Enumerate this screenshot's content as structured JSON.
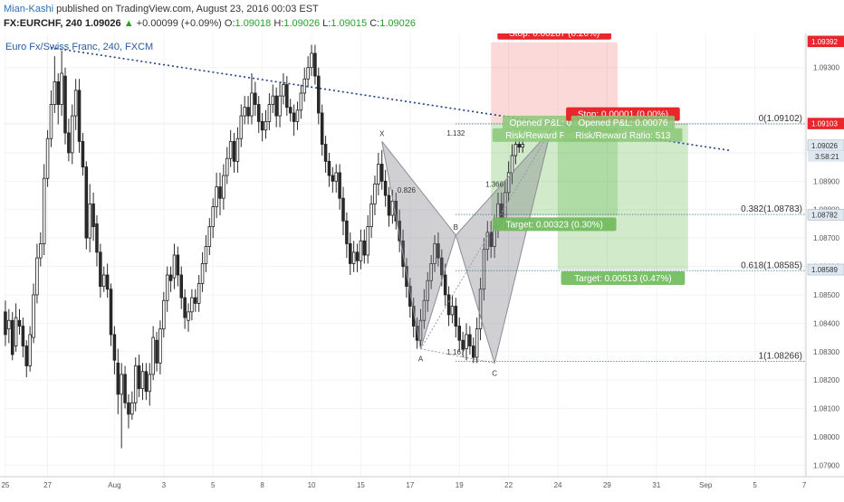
{
  "header": {
    "author": "Mian-Kashi",
    "published": "published on TradingView.com, August 23, 2016 00:03 EST",
    "symbol": "FX:EURCHF, 240",
    "last": "1.09026",
    "change": "+0.00099 (+0.09%)",
    "open_label": "O:",
    "open": "1.09018",
    "high_label": "H:",
    "high": "1.09026",
    "low_label": "L:",
    "low": "1.09015",
    "close_label": "C:",
    "close": "1.09026"
  },
  "chart_data": {
    "type": "candlestick",
    "title": "Euro Fx/Swiss Franc, 240, FXCM",
    "ylim": [
      1.0786,
      1.0942
    ],
    "price_ticks": [
      "1.09300",
      "1.09105",
      "1.09100",
      "1.09000",
      "1.08900",
      "1.08800",
      "1.08700",
      "1.08600",
      "1.08500",
      "1.08400",
      "1.08300",
      "1.08200",
      "1.08100",
      "1.08000",
      "1.07900"
    ],
    "price_tick_values": [
      1.093,
      1.09105,
      1.091,
      1.09,
      1.089,
      1.088,
      1.087,
      1.086,
      1.085,
      1.084,
      1.083,
      1.082,
      1.081,
      1.08,
      1.079
    ],
    "x_ticks": [
      "25",
      "27",
      "Aug",
      "3",
      "5",
      "8",
      "10",
      "15",
      "17",
      "19",
      "22",
      "24",
      "29",
      "31",
      "Sep",
      "5",
      "7"
    ],
    "x_tick_index": [
      0,
      12,
      31,
      45,
      59,
      73,
      87,
      101,
      115,
      129,
      143,
      157,
      171,
      185,
      199,
      213,
      227
    ],
    "total_bars": 228,
    "price_badges": [
      {
        "text": "1.09392",
        "value": 1.09392,
        "color": "#e8262c"
      },
      {
        "text": "1.09103",
        "value": 1.09103,
        "color": "#e8262c"
      },
      {
        "text": "1.09026",
        "value": 1.09026,
        "color": "#dfe8f0",
        "sub": "3:58:21"
      },
      {
        "text": "1.08782",
        "value": 1.08782,
        "color": "#dfe8f0"
      },
      {
        "text": "1.08589",
        "value": 1.08589,
        "color": "#dfe8f0"
      }
    ],
    "trendline": {
      "from_index": 13,
      "from_value": 1.0937,
      "to_index": 206,
      "to_value": 1.09008
    },
    "fib_levels": [
      {
        "label": "0(1.09102)",
        "value": 1.09102
      },
      {
        "label": "0.382(1.08783)",
        "value": 1.08783
      },
      {
        "label": "0.618(1.08585)",
        "value": 1.08585
      },
      {
        "label": "1(1.08266)",
        "value": 1.08266
      }
    ],
    "harmonic_points": [
      {
        "label": "X",
        "index": 107,
        "value": 1.0904
      },
      {
        "label": "A",
        "index": 118,
        "value": 1.0831
      },
      {
        "label": "B",
        "index": 128,
        "value": 1.0871
      },
      {
        "label": "C",
        "index": 139,
        "value": 1.0826
      },
      {
        "label": "D",
        "index": 155,
        "value": 1.0908
      }
    ],
    "ratios": [
      {
        "label": "0.826",
        "index": 114,
        "value": 1.0886
      },
      {
        "label": "1.167",
        "index": 128,
        "value": 1.0829
      },
      {
        "label": "1.132",
        "index": 128,
        "value": 1.0906
      },
      {
        "label": "1.366",
        "index": 139,
        "value": 1.0888
      }
    ],
    "positions": [
      {
        "from_index": 138,
        "to_index": 174,
        "entry": 1.09102,
        "stop": 1.09389,
        "target": 1.08779,
        "stop_label": "Stop: 0.00287 (0.26%)",
        "target_label": "Target: 0.00323 (0.30%)",
        "info1": "Opened P&L: 0.00076",
        "info2": "Risk/Reward Ratio: 1.13"
      },
      {
        "from_index": 157,
        "to_index": 194,
        "entry": 1.09102,
        "stop": 1.09103,
        "target": 1.08589,
        "stop_label": "Stop: 0.00001 (0.00%)",
        "target_label": "Target: 0.00513 (0.47%)",
        "info1": "Opened P&L: 0.00076",
        "info2": "Risk/Reward Ratio: 513"
      }
    ],
    "candles": [
      [
        1.0844,
        1.0836,
        1.0848,
        1.0832
      ],
      [
        1.0838,
        1.0841,
        1.0845,
        1.0833
      ],
      [
        1.0841,
        1.0829,
        1.0844,
        1.0827
      ],
      [
        1.0832,
        1.0842,
        1.0847,
        1.083
      ],
      [
        1.0841,
        1.0839,
        1.0845,
        1.0836
      ],
      [
        1.0839,
        1.0832,
        1.0842,
        1.0828
      ],
      [
        1.0832,
        1.0825,
        1.0834,
        1.0821
      ],
      [
        1.0825,
        1.0836,
        1.0839,
        1.0823
      ],
      [
        1.0835,
        1.085,
        1.0854,
        1.0833
      ],
      [
        1.085,
        1.0863,
        1.0868,
        1.0847
      ],
      [
        1.0863,
        1.0868,
        1.0872,
        1.086
      ],
      [
        1.0868,
        1.0891,
        1.0896,
        1.0864
      ],
      [
        1.0891,
        1.0905,
        1.0908,
        1.0888
      ],
      [
        1.0905,
        1.0917,
        1.0922,
        1.0902
      ],
      [
        1.0917,
        1.0925,
        1.0934,
        1.0914
      ],
      [
        1.0925,
        1.0917,
        1.0928,
        1.091
      ],
      [
        1.0917,
        1.0928,
        1.0936,
        1.0913
      ],
      [
        1.0927,
        1.0907,
        1.093,
        1.0903
      ],
      [
        1.0907,
        1.09,
        1.0912,
        1.0897
      ],
      [
        1.09,
        1.0913,
        1.0917,
        1.0896
      ],
      [
        1.0913,
        1.0922,
        1.0926,
        1.0908
      ],
      [
        1.0922,
        1.0904,
        1.0926,
        1.09
      ],
      [
        1.0904,
        1.0895,
        1.0907,
        1.0892
      ],
      [
        1.0895,
        1.087,
        1.0897,
        1.0866
      ],
      [
        1.087,
        1.0882,
        1.0889,
        1.0865
      ],
      [
        1.0882,
        1.0874,
        1.0886,
        1.0869
      ],
      [
        1.0875,
        1.0865,
        1.0878,
        1.086
      ],
      [
        1.0865,
        1.0853,
        1.0868,
        1.0849
      ],
      [
        1.0853,
        1.0857,
        1.086,
        1.0851
      ],
      [
        1.0857,
        1.0852,
        1.0861,
        1.0849
      ],
      [
        1.0852,
        1.0836,
        1.0854,
        1.0832
      ],
      [
        1.0836,
        1.0827,
        1.0839,
        1.0822
      ],
      [
        1.0826,
        1.0815,
        1.0831,
        1.0808
      ],
      [
        1.0815,
        1.0822,
        1.0826,
        1.0796
      ],
      [
        1.0822,
        1.0812,
        1.0825,
        1.081
      ],
      [
        1.0812,
        1.0808,
        1.0815,
        1.0803
      ],
      [
        1.0808,
        1.0812,
        1.0816,
        1.0806
      ],
      [
        1.0812,
        1.0825,
        1.0828,
        1.0809
      ],
      [
        1.0825,
        1.0817,
        1.0829,
        1.0814
      ],
      [
        1.0817,
        1.0823,
        1.0826,
        1.0813
      ],
      [
        1.0823,
        1.0816,
        1.0826,
        1.0813
      ],
      [
        1.0816,
        1.0822,
        1.0826,
        1.0811
      ],
      [
        1.0822,
        1.0835,
        1.0839,
        1.082
      ],
      [
        1.0834,
        1.0826,
        1.0837,
        1.0823
      ],
      [
        1.0826,
        1.0838,
        1.0841,
        1.0822
      ],
      [
        1.0838,
        1.0848,
        1.0851,
        1.0835
      ],
      [
        1.0848,
        1.0857,
        1.086,
        1.0844
      ],
      [
        1.0857,
        1.0855,
        1.086,
        1.0851
      ],
      [
        1.0856,
        1.0864,
        1.0868,
        1.0852
      ],
      [
        1.0864,
        1.0857,
        1.0867,
        1.0853
      ],
      [
        1.0857,
        1.0849,
        1.086,
        1.0845
      ],
      [
        1.0849,
        1.0842,
        1.0852,
        1.0838
      ],
      [
        1.0841,
        1.0844,
        1.0847,
        1.0837
      ],
      [
        1.0844,
        1.0849,
        1.0852,
        1.0841
      ],
      [
        1.0849,
        1.0847,
        1.0852,
        1.0844
      ],
      [
        1.0847,
        1.0854,
        1.0857,
        1.0844
      ],
      [
        1.0854,
        1.0861,
        1.0865,
        1.0851
      ],
      [
        1.0861,
        1.0867,
        1.0871,
        1.0858
      ],
      [
        1.0867,
        1.0874,
        1.0877,
        1.0864
      ],
      [
        1.0874,
        1.0881,
        1.0884,
        1.087
      ],
      [
        1.0881,
        1.0888,
        1.0893,
        1.0877
      ],
      [
        1.0888,
        1.0884,
        1.0893,
        1.0878
      ],
      [
        1.0884,
        1.0892,
        1.0896,
        1.088
      ],
      [
        1.0892,
        1.0898,
        1.0902,
        1.0889
      ],
      [
        1.0898,
        1.0904,
        1.0908,
        1.0895
      ],
      [
        1.0904,
        1.0897,
        1.0907,
        1.0893
      ],
      [
        1.0897,
        1.0905,
        1.0909,
        1.0893
      ],
      [
        1.0905,
        1.0913,
        1.0917,
        1.0902
      ],
      [
        1.0913,
        1.0916,
        1.092,
        1.091
      ],
      [
        1.0916,
        1.0913,
        1.092,
        1.091
      ],
      [
        1.0913,
        1.0921,
        1.0928,
        1.091
      ],
      [
        1.0921,
        1.0917,
        1.0925,
        1.0913
      ],
      [
        1.0917,
        1.0911,
        1.092,
        1.0907
      ],
      [
        1.0911,
        1.0908,
        1.0914,
        1.0904
      ],
      [
        1.0908,
        1.0911,
        1.0915,
        1.0905
      ],
      [
        1.0911,
        1.0917,
        1.0921,
        1.0908
      ],
      [
        1.0917,
        1.092,
        1.0924,
        1.0914
      ],
      [
        1.092,
        1.0913,
        1.0923,
        1.0909
      ],
      [
        1.0913,
        1.092,
        1.0925,
        1.0909
      ],
      [
        1.092,
        1.0924,
        1.0928,
        1.0917
      ],
      [
        1.0924,
        1.0916,
        1.0927,
        1.0913
      ],
      [
        1.0916,
        1.0914,
        1.0919,
        1.0911
      ],
      [
        1.0914,
        1.0911,
        1.0917,
        1.0906
      ],
      [
        1.0911,
        1.0915,
        1.0918,
        1.0908
      ],
      [
        1.0915,
        1.0921,
        1.0924,
        1.0912
      ],
      [
        1.0921,
        1.0926,
        1.093,
        1.0918
      ],
      [
        1.0926,
        1.093,
        1.0934,
        1.0923
      ],
      [
        1.093,
        1.0935,
        1.0938,
        1.0927
      ],
      [
        1.0935,
        1.0927,
        1.0938,
        1.0924
      ],
      [
        1.0927,
        1.0914,
        1.093,
        1.091
      ],
      [
        1.0914,
        1.0903,
        1.0917,
        1.0899
      ],
      [
        1.0903,
        1.0897,
        1.0906,
        1.0893
      ],
      [
        1.0897,
        1.0892,
        1.09,
        1.0888
      ],
      [
        1.0892,
        1.089,
        1.0895,
        1.0886
      ],
      [
        1.089,
        1.0893,
        1.0896,
        1.0886
      ],
      [
        1.0893,
        1.0884,
        1.0896,
        1.088
      ],
      [
        1.0884,
        1.0876,
        1.0888,
        1.0871
      ],
      [
        1.0876,
        1.0868,
        1.0879,
        1.0863
      ],
      [
        1.0868,
        1.0861,
        1.0872,
        1.0857
      ],
      [
        1.0861,
        1.0865,
        1.0869,
        1.0858
      ],
      [
        1.0865,
        1.0862,
        1.0868,
        1.0858
      ],
      [
        1.0862,
        1.0869,
        1.0873,
        1.0859
      ],
      [
        1.0869,
        1.0864,
        1.0873,
        1.0861
      ],
      [
        1.0864,
        1.0874,
        1.0878,
        1.0861
      ],
      [
        1.0874,
        1.0882,
        1.0885,
        1.087
      ],
      [
        1.0882,
        1.0889,
        1.0892,
        1.0878
      ],
      [
        1.0889,
        1.0896,
        1.09,
        1.0885
      ],
      [
        1.0896,
        1.089,
        1.0901,
        1.0887
      ],
      [
        1.089,
        1.0885,
        1.0894,
        1.0881
      ],
      [
        1.0885,
        1.0878,
        1.0888,
        1.0874
      ],
      [
        1.0878,
        1.0883,
        1.0887,
        1.0875
      ],
      [
        1.0883,
        1.0876,
        1.0886,
        1.0873
      ],
      [
        1.0876,
        1.0869,
        1.088,
        1.0865
      ],
      [
        1.0869,
        1.086,
        1.0873,
        1.0856
      ],
      [
        1.086,
        1.0853,
        1.0863,
        1.0849
      ],
      [
        1.0853,
        1.0846,
        1.0856,
        1.0842
      ],
      [
        1.0846,
        1.0839,
        1.0849,
        1.0835
      ],
      [
        1.0839,
        1.0834,
        1.0842,
        1.0831
      ],
      [
        1.0834,
        1.0841,
        1.0845,
        1.0831
      ],
      [
        1.0841,
        1.0848,
        1.0852,
        1.0838
      ],
      [
        1.0848,
        1.0855,
        1.0858,
        1.0844
      ],
      [
        1.0855,
        1.0861,
        1.0864,
        1.0852
      ],
      [
        1.0861,
        1.0868,
        1.0871,
        1.0858
      ],
      [
        1.0868,
        1.0863,
        1.0872,
        1.086
      ],
      [
        1.0863,
        1.0857,
        1.0866,
        1.0853
      ],
      [
        1.0857,
        1.085,
        1.0861,
        1.0846
      ],
      [
        1.085,
        1.0843,
        1.0853,
        1.0839
      ],
      [
        1.0843,
        1.0846,
        1.085,
        1.084
      ],
      [
        1.0846,
        1.0839,
        1.0849,
        1.0835
      ],
      [
        1.0839,
        1.0834,
        1.0842,
        1.083
      ],
      [
        1.0834,
        1.0831,
        1.0837,
        1.0828
      ],
      [
        1.0831,
        1.0836,
        1.084,
        1.0827
      ],
      [
        1.0836,
        1.0832,
        1.0839,
        1.0829
      ],
      [
        1.0832,
        1.0828,
        1.0835,
        1.0826
      ],
      [
        1.0828,
        1.0838,
        1.0842,
        1.0826
      ],
      [
        1.0838,
        1.0852,
        1.0856,
        1.0834
      ],
      [
        1.0852,
        1.0866,
        1.087,
        1.0848
      ],
      [
        1.0866,
        1.0872,
        1.0876,
        1.0862
      ],
      [
        1.0872,
        1.0867,
        1.0876,
        1.0863
      ],
      [
        1.0867,
        1.0874,
        1.0878,
        1.0863
      ],
      [
        1.0874,
        1.0882,
        1.0886,
        1.087
      ],
      [
        1.0882,
        1.0877,
        1.0886,
        1.0873
      ],
      [
        1.0877,
        1.0886,
        1.089,
        1.0873
      ],
      [
        1.0886,
        1.0893,
        1.0897,
        1.0883
      ],
      [
        1.0893,
        1.0899,
        1.0903,
        1.0889
      ],
      [
        1.0899,
        1.0903,
        1.0906,
        1.0896
      ],
      [
        1.0903,
        1.0902,
        1.0905,
        1.09
      ],
      [
        1.0902,
        1.0903,
        1.0905,
        1.09
      ]
    ]
  }
}
